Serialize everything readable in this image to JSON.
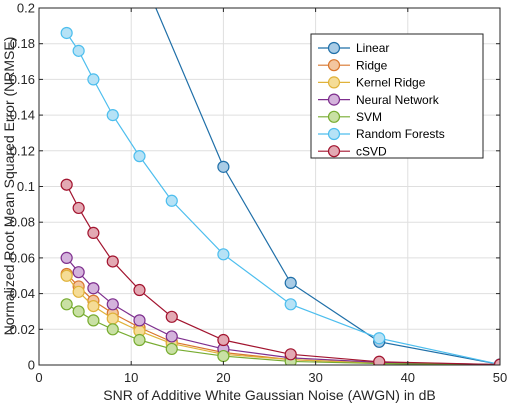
{
  "chart_data": {
    "type": "line",
    "xlabel": "SNR of Additive White Gaussian Noise (AWGN) in dB",
    "ylabel": "Normalized Root Mean Squared Error (NRMSE)",
    "xlim": [
      0,
      50
    ],
    "ylim": [
      0,
      0.2
    ],
    "x_ticks": [
      "0",
      "10",
      "20",
      "30",
      "40",
      "50"
    ],
    "y_ticks": [
      "0",
      "0.02",
      "0.04",
      "0.06",
      "0.08",
      "0.1",
      "0.12",
      "0.14",
      "0.16",
      "0.18",
      "0.2"
    ],
    "grid": true,
    "legend_position": "top-right",
    "series": [
      {
        "name": "Linear",
        "color": "#1f6fa8",
        "fill": "#a9cce6",
        "x": [
          10.2,
          20,
          27.3,
          36.9,
          50
        ],
        "y": [
          0.23,
          0.111,
          0.046,
          0.013,
          0.0003
        ],
        "markers": [
          false,
          true,
          true,
          true,
          true
        ]
      },
      {
        "name": "Ridge",
        "color": "#d9772e",
        "fill": "#f3c69f",
        "x": [
          3,
          4.3,
          5.9,
          8,
          10.9,
          14.4,
          20,
          27.3,
          36.9,
          50
        ],
        "y": [
          0.051,
          0.044,
          0.036,
          0.029,
          0.021,
          0.013,
          0.007,
          0.003,
          0.001,
          0.0002
        ],
        "markers": [
          true,
          true,
          true,
          true,
          true,
          true,
          true,
          true,
          true,
          true
        ]
      },
      {
        "name": "Kernel Ridge",
        "color": "#e0b23a",
        "fill": "#f5dc96",
        "x": [
          3,
          4.3,
          5.9,
          8,
          10.9,
          14.4,
          20,
          27.3,
          36.9,
          50
        ],
        "y": [
          0.05,
          0.041,
          0.033,
          0.026,
          0.019,
          0.012,
          0.006,
          0.003,
          0.001,
          0.0002
        ],
        "markers": [
          true,
          true,
          true,
          true,
          true,
          true,
          true,
          true,
          true,
          true
        ]
      },
      {
        "name": "Neural Network",
        "color": "#7e2f8e",
        "fill": "#d4b3dc",
        "x": [
          3,
          4.3,
          5.9,
          8,
          10.9,
          14.4,
          20,
          27.3,
          36.9,
          50
        ],
        "y": [
          0.06,
          0.052,
          0.043,
          0.034,
          0.025,
          0.016,
          0.009,
          0.004,
          0.0015,
          0.0002
        ],
        "markers": [
          true,
          true,
          true,
          true,
          true,
          true,
          true,
          true,
          true,
          true
        ]
      },
      {
        "name": "SVM",
        "color": "#77ac30",
        "fill": "#c9e0a4",
        "x": [
          3,
          4.3,
          5.9,
          8,
          10.9,
          14.4,
          20,
          27.3,
          36.9,
          50
        ],
        "y": [
          0.034,
          0.03,
          0.025,
          0.02,
          0.014,
          0.009,
          0.005,
          0.002,
          0.0008,
          0.0001
        ],
        "markers": [
          true,
          true,
          true,
          true,
          true,
          true,
          true,
          true,
          true,
          true
        ]
      },
      {
        "name": "Random Forests",
        "color": "#4dbeee",
        "fill": "#b6e2f6",
        "x": [
          3,
          4.3,
          5.9,
          8,
          10.9,
          14.4,
          20,
          27.3,
          36.9,
          50
        ],
        "y": [
          0.186,
          0.176,
          0.16,
          0.14,
          0.117,
          0.092,
          0.062,
          0.034,
          0.015,
          0.0003
        ],
        "markers": [
          true,
          true,
          true,
          true,
          true,
          true,
          true,
          true,
          true,
          true
        ]
      },
      {
        "name": "cSVD",
        "color": "#a2142f",
        "fill": "#e3a9b3",
        "x": [
          3,
          4.3,
          5.9,
          8,
          10.9,
          14.4,
          20,
          27.3,
          36.9,
          50
        ],
        "y": [
          0.101,
          0.088,
          0.074,
          0.058,
          0.042,
          0.027,
          0.014,
          0.006,
          0.0018,
          0.0002
        ],
        "markers": [
          true,
          true,
          true,
          true,
          true,
          true,
          true,
          true,
          true,
          true
        ]
      }
    ]
  }
}
